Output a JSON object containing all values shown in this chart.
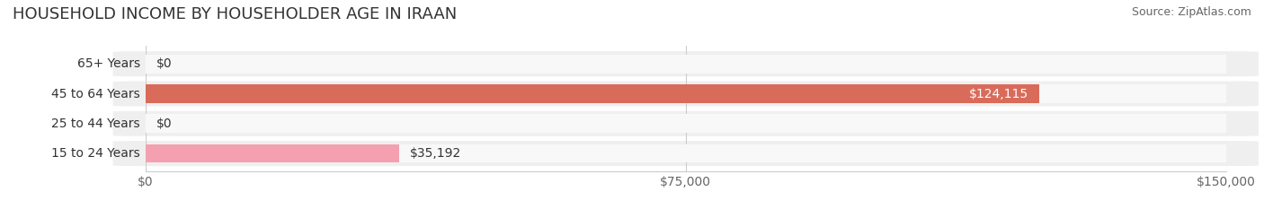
{
  "title": "HOUSEHOLD INCOME BY HOUSEHOLDER AGE IN IRAAN",
  "source": "Source: ZipAtlas.com",
  "categories": [
    "15 to 24 Years",
    "25 to 44 Years",
    "45 to 64 Years",
    "65+ Years"
  ],
  "values": [
    35192,
    0,
    124115,
    0
  ],
  "bar_colors": [
    "#f4a0b0",
    "#e8c88a",
    "#d96b5a",
    "#a8bcd8"
  ],
  "label_colors": [
    "#333333",
    "#333333",
    "#ffffff",
    "#333333"
  ],
  "bg_row_color": "#f0f0f0",
  "xlim": [
    0,
    150000
  ],
  "xticks": [
    0,
    75000,
    150000
  ],
  "xtick_labels": [
    "$0",
    "$75,000",
    "$150,000"
  ],
  "value_labels": [
    "$35,192",
    "$0",
    "$124,115",
    "$0"
  ],
  "title_fontsize": 13,
  "source_fontsize": 9,
  "label_fontsize": 10,
  "tick_fontsize": 10
}
